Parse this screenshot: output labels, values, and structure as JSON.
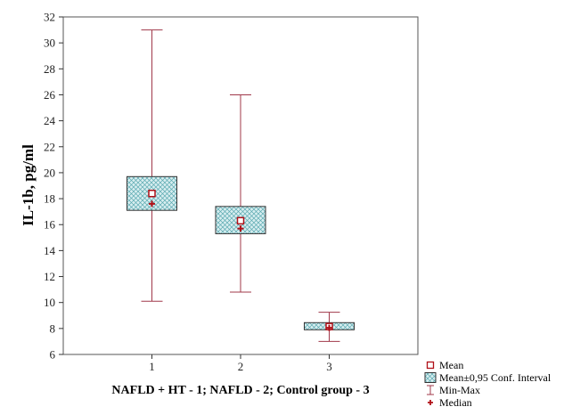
{
  "chart_data": {
    "type": "box",
    "xlabel": "NAFLD + HT - 1; NAFLD - 2; Control group - 3",
    "ylabel": "IL-1b, pg/ml",
    "ylim": [
      6,
      32
    ],
    "yticks": [
      6,
      8,
      10,
      12,
      14,
      16,
      18,
      20,
      22,
      24,
      26,
      28,
      30,
      32
    ],
    "categories": [
      "1",
      "2",
      "3"
    ],
    "groups": [
      {
        "category": "1",
        "mean": 18.4,
        "ci_low": 17.1,
        "ci_high": 19.7,
        "min": 10.1,
        "max": 31.0,
        "median": 17.6
      },
      {
        "category": "2",
        "mean": 16.3,
        "ci_low": 15.3,
        "ci_high": 17.4,
        "min": 10.8,
        "max": 26.0,
        "median": 15.7
      },
      {
        "category": "3",
        "mean": 8.15,
        "ci_low": 7.9,
        "ci_high": 8.45,
        "min": 7.0,
        "max": 9.25,
        "median": 8.05
      }
    ],
    "legend": [
      {
        "label": "Mean",
        "symbol": "square"
      },
      {
        "label": "Mean±0,95 Conf. Interval",
        "symbol": "hatched-box"
      },
      {
        "label": "Min-Max",
        "symbol": "whisker"
      },
      {
        "label": "Median",
        "symbol": "plus"
      }
    ],
    "legend_position": "bottom-right",
    "grid": false,
    "colors": {
      "box_fill": "#d8eef0",
      "hatch": "#5aa9b0",
      "line": "#a0384a",
      "marker": "#b01018"
    }
  }
}
